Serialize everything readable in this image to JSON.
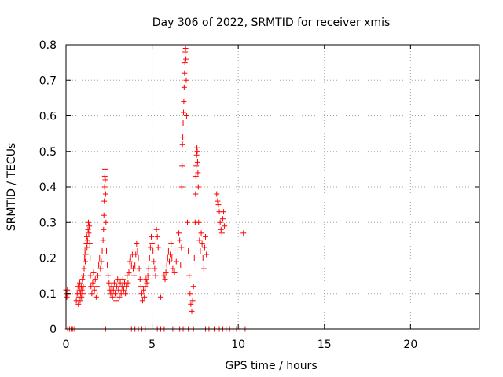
{
  "chart_data": {
    "type": "scatter",
    "title": "Day 306 of 2022, SRMTID for receiver xmis",
    "xlabel": "GPS time / hours",
    "ylabel": "SRMTID / TECUs",
    "xlim": [
      0,
      24
    ],
    "ylim": [
      0,
      0.8
    ],
    "xticks": [
      0,
      5,
      10,
      15,
      20
    ],
    "yticks": [
      0,
      0.1,
      0.2,
      0.3,
      0.4,
      0.5,
      0.6,
      0.7,
      0.8
    ],
    "xtick_labels": [
      "0",
      "5",
      "10",
      "15",
      "20"
    ],
    "ytick_labels": [
      "0",
      "0.1",
      "0.2",
      "0.3",
      "0.4",
      "0.5",
      "0.6",
      "0.7",
      "0.8"
    ],
    "grid": true,
    "marker": "+",
    "color": "#ff0000",
    "series": [
      {
        "name": "SRMTID",
        "points": [
          [
            0.0,
            0.11
          ],
          [
            0.02,
            0.1
          ],
          [
            0.05,
            0.09
          ],
          [
            0.08,
            0.11
          ],
          [
            0.1,
            0.1
          ],
          [
            0.6,
            0.08
          ],
          [
            0.65,
            0.1
          ],
          [
            0.7,
            0.12
          ],
          [
            0.72,
            0.07
          ],
          [
            0.75,
            0.09
          ],
          [
            0.78,
            0.11
          ],
          [
            0.8,
            0.13
          ],
          [
            0.82,
            0.08
          ],
          [
            0.85,
            0.1
          ],
          [
            0.88,
            0.12
          ],
          [
            0.9,
            0.09
          ],
          [
            0.92,
            0.11
          ],
          [
            0.95,
            0.14
          ],
          [
            0.98,
            0.1
          ],
          [
            1.0,
            0.12
          ],
          [
            1.02,
            0.15
          ],
          [
            1.05,
            0.17
          ],
          [
            1.08,
            0.2
          ],
          [
            1.1,
            0.22
          ],
          [
            1.12,
            0.19
          ],
          [
            1.15,
            0.21
          ],
          [
            1.18,
            0.24
          ],
          [
            1.2,
            0.26
          ],
          [
            1.22,
            0.23
          ],
          [
            1.25,
            0.25
          ],
          [
            1.28,
            0.28
          ],
          [
            1.3,
            0.3
          ],
          [
            1.32,
            0.27
          ],
          [
            1.35,
            0.29
          ],
          [
            1.38,
            0.24
          ],
          [
            1.4,
            0.2
          ],
          [
            1.42,
            0.15
          ],
          [
            1.45,
            0.12
          ],
          [
            1.5,
            0.1
          ],
          [
            1.55,
            0.13
          ],
          [
            1.6,
            0.16
          ],
          [
            1.65,
            0.11
          ],
          [
            1.7,
            0.14
          ],
          [
            1.75,
            0.09
          ],
          [
            1.8,
            0.12
          ],
          [
            1.85,
            0.15
          ],
          [
            1.9,
            0.18
          ],
          [
            1.95,
            0.2
          ],
          [
            2.0,
            0.17
          ],
          [
            2.05,
            0.19
          ],
          [
            2.1,
            0.22
          ],
          [
            2.15,
            0.25
          ],
          [
            2.18,
            0.28
          ],
          [
            2.2,
            0.32
          ],
          [
            2.22,
            0.36
          ],
          [
            2.24,
            0.4
          ],
          [
            2.25,
            0.43
          ],
          [
            2.26,
            0.45
          ],
          [
            2.28,
            0.42
          ],
          [
            2.3,
            0.38
          ],
          [
            2.32,
            0.3
          ],
          [
            2.35,
            0.22
          ],
          [
            2.4,
            0.18
          ],
          [
            2.45,
            0.15
          ],
          [
            2.5,
            0.13
          ],
          [
            2.55,
            0.11
          ],
          [
            2.6,
            0.1
          ],
          [
            2.65,
            0.12
          ],
          [
            2.7,
            0.09
          ],
          [
            2.75,
            0.11
          ],
          [
            2.8,
            0.13
          ],
          [
            2.85,
            0.1
          ],
          [
            2.9,
            0.08
          ],
          [
            2.95,
            0.12
          ],
          [
            3.0,
            0.14
          ],
          [
            3.05,
            0.11
          ],
          [
            3.1,
            0.09
          ],
          [
            3.15,
            0.13
          ],
          [
            3.2,
            0.1
          ],
          [
            3.25,
            0.12
          ],
          [
            3.3,
            0.14
          ],
          [
            3.35,
            0.11
          ],
          [
            3.4,
            0.13
          ],
          [
            3.45,
            0.1
          ],
          [
            3.5,
            0.12
          ],
          [
            3.55,
            0.15
          ],
          [
            3.6,
            0.13
          ],
          [
            3.65,
            0.16
          ],
          [
            3.7,
            0.19
          ],
          [
            3.75,
            0.2
          ],
          [
            3.8,
            0.18
          ],
          [
            3.85,
            0.21
          ],
          [
            3.9,
            0.17
          ],
          [
            3.95,
            0.15
          ],
          [
            4.0,
            0.18
          ],
          [
            4.05,
            0.21
          ],
          [
            4.1,
            0.24
          ],
          [
            4.15,
            0.22
          ],
          [
            4.2,
            0.2
          ],
          [
            4.25,
            0.17
          ],
          [
            4.3,
            0.14
          ],
          [
            4.35,
            0.12
          ],
          [
            4.4,
            0.1
          ],
          [
            4.45,
            0.08
          ],
          [
            4.5,
            0.11
          ],
          [
            4.55,
            0.09
          ],
          [
            4.6,
            0.12
          ],
          [
            4.65,
            0.14
          ],
          [
            4.7,
            0.13
          ],
          [
            4.75,
            0.15
          ],
          [
            4.8,
            0.17
          ],
          [
            4.85,
            0.2
          ],
          [
            4.9,
            0.23
          ],
          [
            4.95,
            0.26
          ],
          [
            5.0,
            0.24
          ],
          [
            5.05,
            0.22
          ],
          [
            5.1,
            0.19
          ],
          [
            5.15,
            0.17
          ],
          [
            5.2,
            0.15
          ],
          [
            5.25,
            0.28
          ],
          [
            5.3,
            0.26
          ],
          [
            5.35,
            0.23
          ],
          [
            5.5,
            0.09
          ],
          [
            5.7,
            0.15
          ],
          [
            5.75,
            0.14
          ],
          [
            5.8,
            0.16
          ],
          [
            5.85,
            0.18
          ],
          [
            5.9,
            0.2
          ],
          [
            5.95,
            0.22
          ],
          [
            6.0,
            0.19
          ],
          [
            6.05,
            0.21
          ],
          [
            6.1,
            0.24
          ],
          [
            6.15,
            0.2
          ],
          [
            6.2,
            0.17
          ],
          [
            6.3,
            0.16
          ],
          [
            6.4,
            0.19
          ],
          [
            6.5,
            0.22
          ],
          [
            6.55,
            0.27
          ],
          [
            6.6,
            0.25
          ],
          [
            6.65,
            0.18
          ],
          [
            6.7,
            0.23
          ],
          [
            6.72,
            0.4
          ],
          [
            6.74,
            0.46
          ],
          [
            6.76,
            0.52
          ],
          [
            6.78,
            0.54
          ],
          [
            6.8,
            0.58
          ],
          [
            6.82,
            0.61
          ],
          [
            6.84,
            0.64
          ],
          [
            6.86,
            0.68
          ],
          [
            6.88,
            0.72
          ],
          [
            6.9,
            0.75
          ],
          [
            6.92,
            0.78
          ],
          [
            6.94,
            0.79
          ],
          [
            6.96,
            0.76
          ],
          [
            6.98,
            0.7
          ],
          [
            7.0,
            0.6
          ],
          [
            7.05,
            0.3
          ],
          [
            7.1,
            0.22
          ],
          [
            7.15,
            0.15
          ],
          [
            7.2,
            0.1
          ],
          [
            7.25,
            0.07
          ],
          [
            7.3,
            0.05
          ],
          [
            7.35,
            0.08
          ],
          [
            7.4,
            0.12
          ],
          [
            7.45,
            0.2
          ],
          [
            7.5,
            0.3
          ],
          [
            7.52,
            0.38
          ],
          [
            7.54,
            0.43
          ],
          [
            7.56,
            0.46
          ],
          [
            7.58,
            0.49
          ],
          [
            7.6,
            0.51
          ],
          [
            7.62,
            0.5
          ],
          [
            7.64,
            0.47
          ],
          [
            7.66,
            0.44
          ],
          [
            7.68,
            0.4
          ],
          [
            7.7,
            0.3
          ],
          [
            7.75,
            0.25
          ],
          [
            7.8,
            0.22
          ],
          [
            7.85,
            0.27
          ],
          [
            7.9,
            0.24
          ],
          [
            7.95,
            0.2
          ],
          [
            8.0,
            0.17
          ],
          [
            8.05,
            0.23
          ],
          [
            8.1,
            0.26
          ],
          [
            8.15,
            0.21
          ],
          [
            8.75,
            0.38
          ],
          [
            8.8,
            0.36
          ],
          [
            8.85,
            0.35
          ],
          [
            8.9,
            0.33
          ],
          [
            8.95,
            0.3
          ],
          [
            9.0,
            0.28
          ],
          [
            9.05,
            0.27
          ],
          [
            9.1,
            0.31
          ],
          [
            9.15,
            0.33
          ],
          [
            9.2,
            0.29
          ],
          [
            10.3,
            0.27
          ],
          [
            0.1,
            0.0
          ],
          [
            0.2,
            0.0
          ],
          [
            0.3,
            0.0
          ],
          [
            0.4,
            0.0
          ],
          [
            0.5,
            0.0
          ],
          [
            2.3,
            0.0
          ],
          [
            3.8,
            0.0
          ],
          [
            4.0,
            0.0
          ],
          [
            4.2,
            0.0
          ],
          [
            4.4,
            0.0
          ],
          [
            4.6,
            0.0
          ],
          [
            5.3,
            0.0
          ],
          [
            5.5,
            0.0
          ],
          [
            5.7,
            0.0
          ],
          [
            6.2,
            0.0
          ],
          [
            6.6,
            0.0
          ],
          [
            6.8,
            0.0
          ],
          [
            7.1,
            0.0
          ],
          [
            7.4,
            0.0
          ],
          [
            8.1,
            0.0
          ],
          [
            8.3,
            0.0
          ],
          [
            8.6,
            0.0
          ],
          [
            8.9,
            0.0
          ],
          [
            9.1,
            0.0
          ],
          [
            9.3,
            0.0
          ],
          [
            9.5,
            0.0
          ],
          [
            9.7,
            0.0
          ],
          [
            9.9,
            0.0
          ],
          [
            10.1,
            0.0
          ],
          [
            10.4,
            0.0
          ]
        ]
      }
    ]
  }
}
